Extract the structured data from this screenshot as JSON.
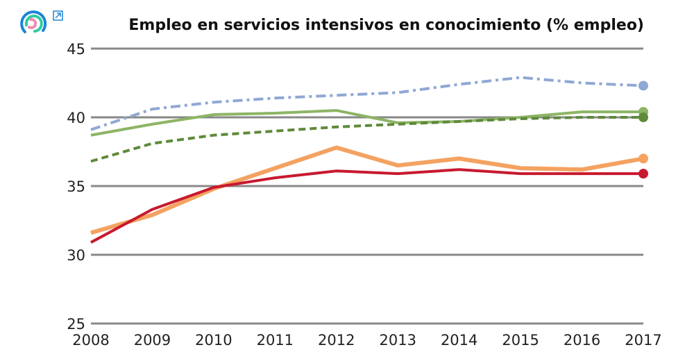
{
  "chart_data": {
    "type": "line",
    "title": "Empleo en servicios intensivos en conocimiento (% empleo)",
    "x": [
      2008,
      2009,
      2010,
      2011,
      2012,
      2013,
      2014,
      2015,
      2016,
      2017
    ],
    "xlim": [
      2008,
      2017
    ],
    "ylim": [
      25,
      45
    ],
    "yticks": [
      25,
      30,
      35,
      40,
      45
    ],
    "grid": "horizontal",
    "series": [
      {
        "color": "#8fa8d4",
        "style": "dashdot",
        "values": [
          39.1,
          40.6,
          41.1,
          41.4,
          41.6,
          41.8,
          42.4,
          42.9,
          42.5,
          42.3
        ]
      },
      {
        "color": "#8db564",
        "style": "solid",
        "values": [
          38.7,
          39.5,
          40.2,
          40.3,
          40.5,
          39.6,
          39.7,
          40.0,
          40.4,
          40.4
        ]
      },
      {
        "color": "#5e8a3a",
        "style": "dashed",
        "values": [
          36.8,
          38.1,
          38.7,
          39.0,
          39.3,
          39.5,
          39.7,
          39.9,
          40.0,
          40.0
        ]
      },
      {
        "color": "#f4a261",
        "style": "solid-thick",
        "values": [
          31.6,
          32.9,
          34.8,
          36.3,
          37.8,
          36.5,
          37.0,
          36.3,
          36.2,
          37.0
        ]
      },
      {
        "color": "#c8192e",
        "style": "solid",
        "values": [
          30.9,
          33.3,
          34.9,
          35.6,
          36.1,
          35.9,
          36.2,
          35.9,
          35.9,
          35.9
        ]
      }
    ]
  },
  "logo": {
    "colors": [
      "#1a84d6",
      "#2ecba0",
      "#f08bb0"
    ]
  },
  "icons": {
    "external": "external-link-icon"
  }
}
